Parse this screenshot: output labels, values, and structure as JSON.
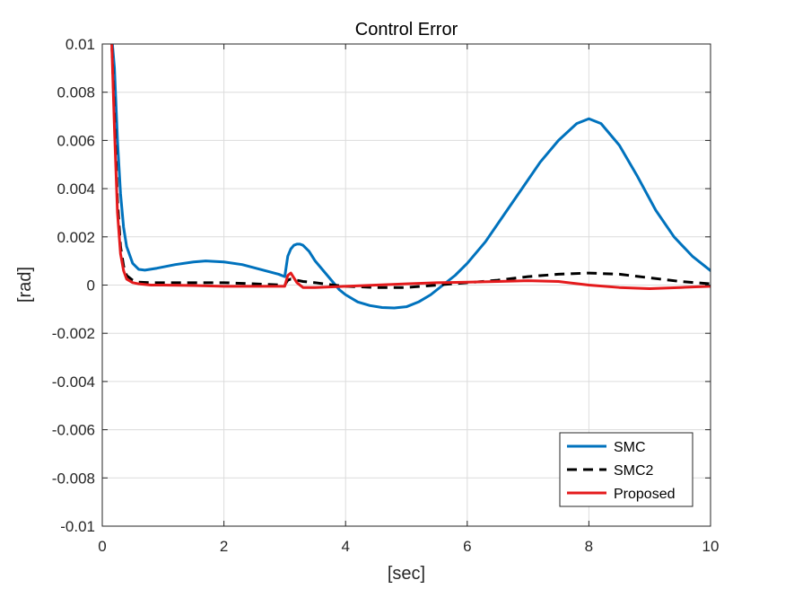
{
  "chart_data": {
    "type": "line",
    "title": "Control Error",
    "xlabel": "[sec]",
    "ylabel": "[rad]",
    "xlim": [
      0,
      10
    ],
    "ylim": [
      -0.01,
      0.01
    ],
    "grid": true,
    "legend_position": "bottom-right",
    "x_ticks": [
      {
        "value": 0,
        "label": "0"
      },
      {
        "value": 2,
        "label": "2"
      },
      {
        "value": 4,
        "label": "4"
      },
      {
        "value": 6,
        "label": "6"
      },
      {
        "value": 8,
        "label": "8"
      },
      {
        "value": 10,
        "label": "10"
      }
    ],
    "y_ticks": [
      {
        "value": 0.01,
        "label": "0.01"
      },
      {
        "value": 0.008,
        "label": "0.008"
      },
      {
        "value": 0.006,
        "label": "0.006"
      },
      {
        "value": 0.004,
        "label": "0.004"
      },
      {
        "value": 0.002,
        "label": "0.002"
      },
      {
        "value": 0,
        "label": "0"
      },
      {
        "value": -0.002,
        "label": "-0.002"
      },
      {
        "value": -0.004,
        "label": "-0.004"
      },
      {
        "value": -0.006,
        "label": "-0.006"
      },
      {
        "value": -0.008,
        "label": "-0.008"
      },
      {
        "value": -0.01,
        "label": "-0.01"
      }
    ],
    "series": [
      {
        "name": "SMC",
        "color": "#0072BD",
        "dash": "solid",
        "x": [
          0.15,
          0.2,
          0.25,
          0.3,
          0.35,
          0.4,
          0.5,
          0.6,
          0.7,
          0.9,
          1.2,
          1.5,
          1.7,
          2.0,
          2.3,
          2.6,
          2.9,
          3.0,
          3.05,
          3.1,
          3.15,
          3.2,
          3.25,
          3.3,
          3.4,
          3.5,
          3.7,
          3.9,
          4.0,
          4.2,
          4.4,
          4.6,
          4.8,
          5.0,
          5.2,
          5.4,
          5.6,
          5.8,
          6.0,
          6.3,
          6.6,
          6.9,
          7.2,
          7.5,
          7.8,
          8.0,
          8.2,
          8.5,
          8.8,
          9.1,
          9.4,
          9.7,
          10.0
        ],
        "y": [
          0.0105,
          0.009,
          0.006,
          0.0038,
          0.0024,
          0.0016,
          0.0009,
          0.00065,
          0.00062,
          0.0007,
          0.00085,
          0.00096,
          0.001,
          0.00096,
          0.00085,
          0.00065,
          0.00045,
          0.00035,
          0.0012,
          0.0015,
          0.00165,
          0.0017,
          0.0017,
          0.00165,
          0.0014,
          0.001,
          0.0004,
          -0.0002,
          -0.0004,
          -0.0007,
          -0.00085,
          -0.00093,
          -0.00095,
          -0.0009,
          -0.0007,
          -0.0004,
          0.0,
          0.0004,
          0.0009,
          0.0018,
          0.0029,
          0.004,
          0.0051,
          0.006,
          0.0067,
          0.0069,
          0.0067,
          0.0058,
          0.0045,
          0.0031,
          0.002,
          0.0012,
          0.0006
        ]
      },
      {
        "name": "SMC2",
        "color": "#000000",
        "dash": "dashed",
        "x": [
          0.15,
          0.2,
          0.25,
          0.3,
          0.35,
          0.4,
          0.5,
          0.6,
          0.8,
          1.0,
          1.5,
          2.0,
          2.5,
          3.0,
          3.05,
          3.1,
          3.2,
          3.3,
          3.5,
          3.8,
          4.0,
          4.5,
          5.0,
          5.5,
          6.0,
          6.5,
          7.0,
          7.5,
          8.0,
          8.5,
          9.0,
          9.5,
          10.0
        ],
        "y": [
          0.0105,
          0.007,
          0.0035,
          0.0016,
          0.0008,
          0.0004,
          0.0002,
          0.00012,
          0.0001,
          0.0001,
          0.0001,
          0.0001,
          5e-05,
          0.0,
          0.0002,
          0.00025,
          0.0002,
          0.00015,
          0.0001,
          0.0,
          -5e-05,
          -0.0001,
          -0.0001,
          0.0,
          0.0001,
          0.0002,
          0.00035,
          0.00045,
          0.0005,
          0.00045,
          0.0003,
          0.00015,
          5e-05
        ]
      },
      {
        "name": "Proposed",
        "color": "#E41A1C",
        "dash": "solid",
        "x": [
          0.15,
          0.2,
          0.25,
          0.3,
          0.35,
          0.4,
          0.5,
          0.6,
          0.8,
          1.0,
          1.5,
          2.0,
          2.5,
          3.0,
          3.05,
          3.1,
          3.15,
          3.2,
          3.3,
          3.5,
          4.0,
          4.5,
          5.0,
          5.5,
          6.0,
          6.5,
          7.0,
          7.5,
          8.0,
          8.5,
          9.0,
          9.5,
          10.0
        ],
        "y": [
          0.0105,
          0.0065,
          0.003,
          0.0013,
          0.0006,
          0.00025,
          0.0001,
          5e-05,
          0.0,
          0.0,
          -2e-05,
          -5e-05,
          -5e-05,
          -5e-05,
          0.0004,
          0.0005,
          0.0003,
          0.0001,
          -0.0001,
          -0.0001,
          -5e-05,
          0.0,
          5e-05,
          0.0001,
          0.00012,
          0.00015,
          0.00018,
          0.00015,
          0.0,
          -0.0001,
          -0.00015,
          -0.0001,
          -5e-05
        ]
      }
    ]
  }
}
